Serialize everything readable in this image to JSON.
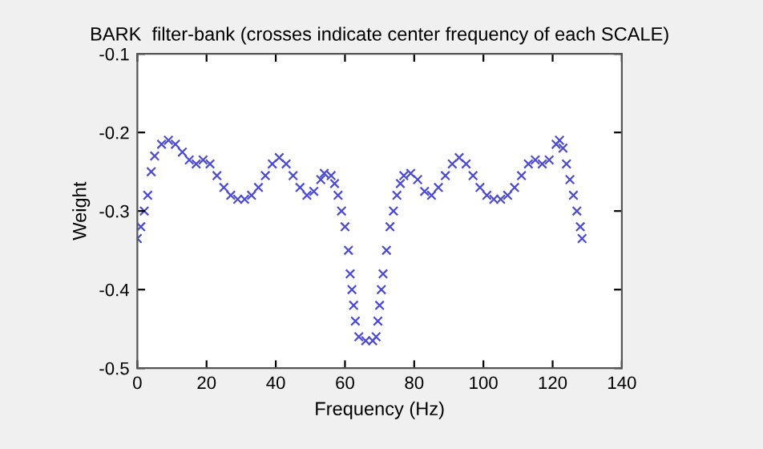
{
  "chart_data": {
    "type": "scatter",
    "title": "BARK  filter-bank (crosses indicate center frequency of each SCALE)",
    "xlabel": "Frequency (Hz)",
    "ylabel": "Weight",
    "xlim": [
      0,
      140
    ],
    "xticks": [
      0,
      20,
      40,
      60,
      80,
      100,
      120,
      140
    ],
    "ylim": [
      -0.5,
      -0.1
    ],
    "yticks": [
      -0.5,
      -0.4,
      -0.3,
      -0.2,
      -0.1
    ],
    "grid": false,
    "legend": false,
    "marker": "cross",
    "series": [
      {
        "color": "#4b4bd6",
        "x": [
          0,
          1,
          2,
          3,
          4,
          5,
          7,
          9,
          11,
          13,
          15,
          17,
          19,
          21,
          23,
          25,
          27,
          29,
          31,
          33,
          35,
          37,
          39,
          41,
          43,
          45,
          47,
          49,
          51,
          53,
          54,
          56,
          57,
          58,
          59,
          60,
          61,
          61.5,
          62,
          62.5,
          63,
          64,
          66,
          68,
          69,
          69.5,
          70,
          70.5,
          71,
          72,
          73,
          74,
          75,
          76,
          77,
          79,
          81,
          83,
          85,
          87,
          89,
          91,
          93,
          95,
          97,
          99,
          101,
          103,
          105,
          107,
          109,
          111,
          113,
          115,
          117,
          119,
          121,
          122,
          123,
          124,
          125,
          126,
          127,
          128,
          128.5
        ],
        "values": [
          -0.335,
          -0.32,
          -0.3,
          -0.28,
          -0.25,
          -0.23,
          -0.215,
          -0.21,
          -0.215,
          -0.225,
          -0.235,
          -0.24,
          -0.235,
          -0.24,
          -0.255,
          -0.27,
          -0.28,
          -0.285,
          -0.285,
          -0.28,
          -0.27,
          -0.255,
          -0.24,
          -0.232,
          -0.24,
          -0.255,
          -0.27,
          -0.28,
          -0.275,
          -0.26,
          -0.252,
          -0.255,
          -0.265,
          -0.28,
          -0.3,
          -0.32,
          -0.35,
          -0.38,
          -0.4,
          -0.42,
          -0.44,
          -0.46,
          -0.465,
          -0.465,
          -0.46,
          -0.44,
          -0.42,
          -0.4,
          -0.38,
          -0.35,
          -0.32,
          -0.3,
          -0.28,
          -0.265,
          -0.255,
          -0.252,
          -0.26,
          -0.275,
          -0.28,
          -0.27,
          -0.255,
          -0.24,
          -0.232,
          -0.24,
          -0.255,
          -0.27,
          -0.28,
          -0.285,
          -0.285,
          -0.28,
          -0.27,
          -0.255,
          -0.24,
          -0.235,
          -0.24,
          -0.235,
          -0.215,
          -0.21,
          -0.22,
          -0.24,
          -0.26,
          -0.28,
          -0.3,
          -0.32,
          -0.335
        ]
      }
    ]
  }
}
